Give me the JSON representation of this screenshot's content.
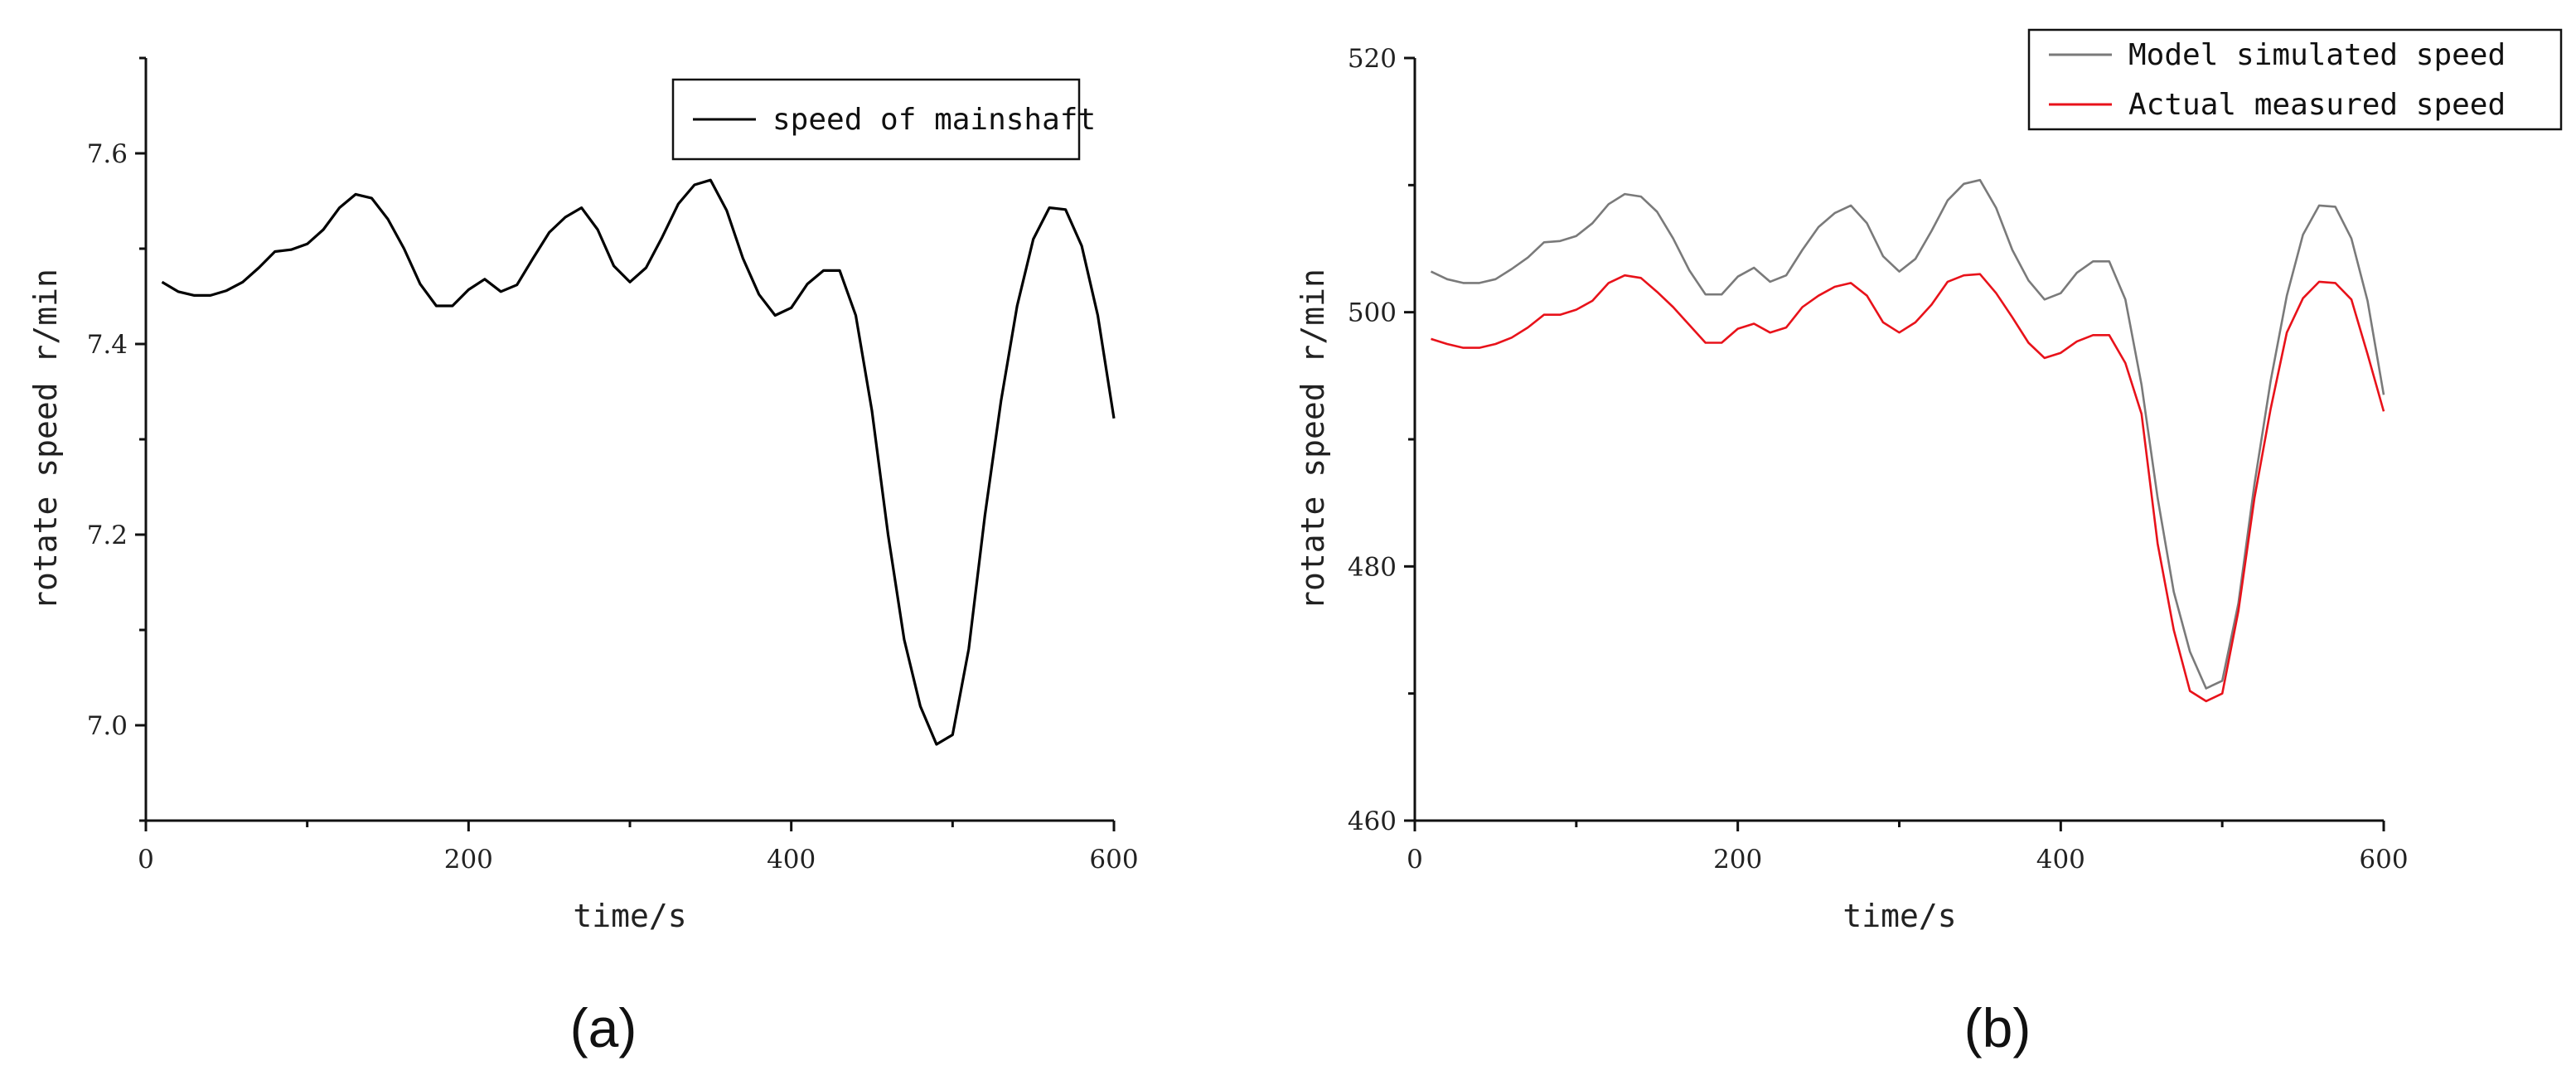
{
  "chart_data": [
    {
      "type": "line",
      "panel_label": "(a)",
      "xlabel": "time/s",
      "ylabel": "rotate speed r/min",
      "xlim": [
        0,
        600
      ],
      "ylim": [
        6.9,
        7.7
      ],
      "x_ticks": [
        "0",
        "200",
        "400",
        "600"
      ],
      "y_ticks": [
        "7.0",
        "7.2",
        "7.4",
        "7.6"
      ],
      "grid": false,
      "legend_position": "top-right",
      "x": [
        10,
        20,
        30,
        40,
        50,
        60,
        70,
        80,
        90,
        100,
        110,
        120,
        130,
        140,
        150,
        160,
        170,
        180,
        190,
        200,
        210,
        220,
        230,
        240,
        250,
        260,
        270,
        280,
        290,
        300,
        310,
        320,
        330,
        340,
        350,
        360,
        370,
        380,
        390,
        400,
        410,
        420,
        430,
        440,
        450,
        460,
        470,
        480,
        490,
        500,
        510,
        520,
        530,
        540,
        550,
        560,
        570,
        580,
        590,
        600
      ],
      "series": [
        {
          "name": "speed of mainshaft",
          "color": "#000000",
          "values": [
            7.465,
            7.455,
            7.451,
            7.451,
            7.456,
            7.465,
            7.48,
            7.497,
            7.499,
            7.505,
            7.52,
            7.543,
            7.557,
            7.553,
            7.531,
            7.5,
            7.463,
            7.44,
            7.44,
            7.457,
            7.468,
            7.455,
            7.462,
            7.49,
            7.517,
            7.533,
            7.543,
            7.52,
            7.482,
            7.465,
            7.48,
            7.512,
            7.547,
            7.567,
            7.572,
            7.54,
            7.49,
            7.452,
            7.43,
            7.438,
            7.463,
            7.477,
            7.477,
            7.43,
            7.33,
            7.2,
            7.09,
            7.02,
            6.98,
            6.99,
            7.08,
            7.22,
            7.34,
            7.44,
            7.51,
            7.543,
            7.541,
            7.503,
            7.43,
            7.322
          ]
        }
      ]
    },
    {
      "type": "line",
      "panel_label": "(b)",
      "xlabel": "time/s",
      "ylabel": "rotate speed r/min",
      "xlim": [
        0,
        600
      ],
      "ylim": [
        460,
        520
      ],
      "x_ticks": [
        "0",
        "200",
        "400",
        "600"
      ],
      "y_ticks": [
        "460",
        "480",
        "500",
        "520"
      ],
      "grid": false,
      "legend_position": "top-right",
      "x": [
        10,
        20,
        30,
        40,
        50,
        60,
        70,
        80,
        90,
        100,
        110,
        120,
        130,
        140,
        150,
        160,
        170,
        180,
        190,
        200,
        210,
        220,
        230,
        240,
        250,
        260,
        270,
        280,
        290,
        300,
        310,
        320,
        330,
        340,
        350,
        360,
        370,
        380,
        390,
        400,
        410,
        420,
        430,
        440,
        450,
        460,
        470,
        480,
        490,
        500,
        510,
        520,
        530,
        540,
        550,
        560,
        570,
        580,
        590,
        600
      ],
      "series": [
        {
          "name": "Model simulated speed",
          "color": "#7a7a7a",
          "values": [
            503.2,
            502.6,
            502.3,
            502.3,
            502.6,
            503.4,
            504.3,
            505.5,
            505.6,
            506.0,
            507.0,
            508.5,
            509.3,
            509.1,
            507.9,
            505.8,
            503.3,
            501.4,
            501.4,
            502.8,
            503.5,
            502.4,
            502.9,
            504.9,
            506.7,
            507.8,
            508.4,
            507.0,
            504.4,
            503.2,
            504.2,
            506.4,
            508.8,
            510.1,
            510.4,
            508.2,
            504.9,
            502.5,
            501.0,
            501.5,
            503.1,
            504.0,
            504.0,
            501.0,
            494.3,
            485.4,
            478.0,
            473.3,
            470.4,
            471.0,
            477.1,
            486.5,
            494.6,
            501.3,
            506.1,
            508.4,
            508.3,
            505.8,
            500.9,
            493.5
          ]
        },
        {
          "name": "Actual measured speed",
          "color": "#e8121a",
          "values": [
            497.9,
            497.5,
            497.2,
            497.2,
            497.5,
            498.0,
            498.8,
            499.8,
            499.8,
            500.2,
            500.9,
            502.3,
            502.9,
            502.7,
            501.6,
            500.4,
            499.0,
            497.6,
            497.6,
            498.7,
            499.1,
            498.4,
            498.8,
            500.4,
            501.3,
            502.0,
            502.3,
            501.3,
            499.2,
            498.4,
            499.2,
            500.6,
            502.4,
            502.9,
            503.0,
            501.5,
            499.6,
            497.6,
            496.4,
            496.8,
            497.7,
            498.2,
            498.2,
            496.0,
            492.0,
            481.8,
            475.0,
            470.2,
            469.4,
            470.0,
            476.5,
            485.4,
            492.4,
            498.4,
            501.1,
            502.4,
            502.3,
            501.0,
            496.7,
            492.2
          ]
        }
      ]
    }
  ]
}
